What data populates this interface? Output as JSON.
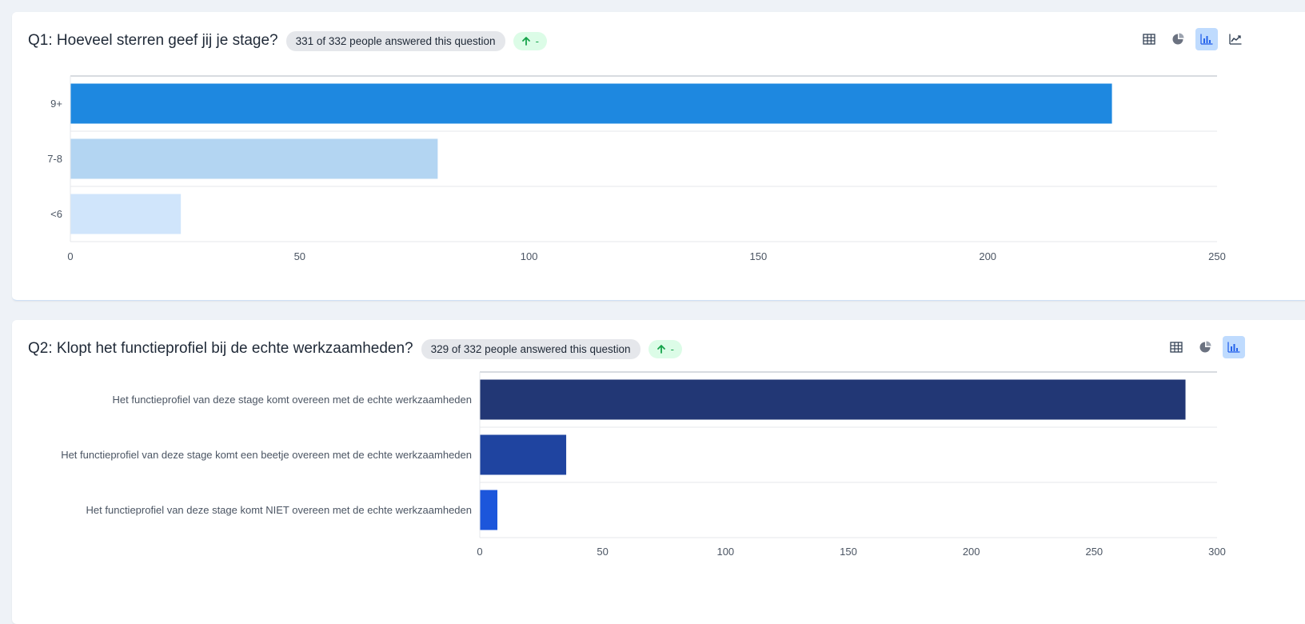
{
  "questions": [
    {
      "id": "q1",
      "title": "Q1: Hoeveel sterren geef jij je stage?",
      "answered": "331 of 332 people answered this question",
      "trend": "-",
      "views": [
        "table",
        "pie",
        "bar",
        "line"
      ],
      "active_view": "bar"
    },
    {
      "id": "q2",
      "title": "Q2: Klopt het functieprofiel bij de echte werkzaamheden?",
      "answered": "329 of 332 people answered this question",
      "trend": "-",
      "views": [
        "table",
        "pie",
        "bar"
      ],
      "active_view": "bar"
    }
  ],
  "chart_data": [
    {
      "type": "bar",
      "orientation": "horizontal",
      "categories": [
        "9+",
        "7-8",
        "<6"
      ],
      "values": [
        227,
        80,
        24
      ],
      "colors": [
        "#1e88e0",
        "#b3d5f2",
        "#d0e5fb"
      ],
      "xlim": [
        0,
        250
      ],
      "xticks": [
        0,
        50,
        100,
        150,
        200,
        250
      ],
      "grid": true
    },
    {
      "type": "bar",
      "orientation": "horizontal",
      "categories": [
        "Het functieprofiel van deze stage komt overeen met de echte werkzaamheden",
        "Het functieprofiel van deze stage komt een beetje overeen met de echte werkzaamheden",
        "Het functieprofiel van deze stage komt NIET overeen met de echte werkzaamheden"
      ],
      "values": [
        287,
        35,
        7
      ],
      "colors": [
        "#223775",
        "#1f44a0",
        "#1c56db"
      ],
      "xlim": [
        0,
        300
      ],
      "xticks": [
        0,
        50,
        100,
        150,
        200,
        250,
        300
      ],
      "grid": true
    }
  ],
  "colors": {
    "page_bg": "#eef2f7",
    "card_bg": "#ffffff",
    "badge_bg": "#e5e7eb",
    "trend_bg": "#dcfce7",
    "trend_fg": "#16a34a",
    "active_tool_bg": "#bfdbfe"
  }
}
